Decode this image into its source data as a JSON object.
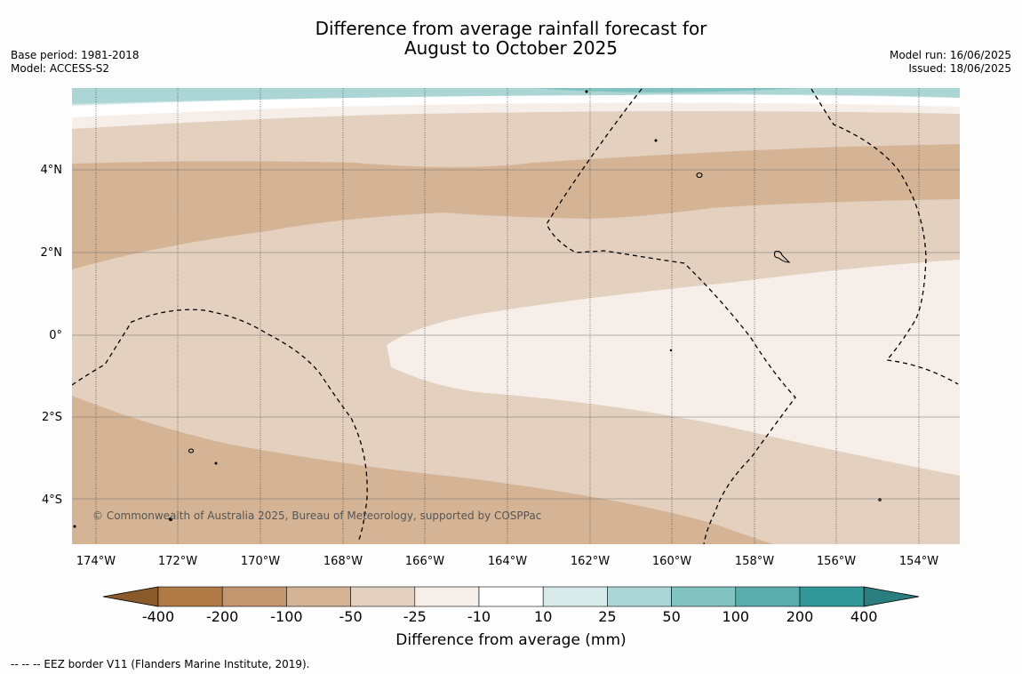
{
  "title_line1": "Difference from average rainfall forecast for",
  "title_line2": "August to October 2025",
  "base_period": "Base period: 1981-2018",
  "model": "Model: ACCESS-S2",
  "model_run": "Model run: 16/06/2025",
  "issued": "Issued: 18/06/2025",
  "copyright": "© Commonwealth of Australia 2025, Bureau of Meteorology, supported by COSPPac",
  "lat_labels": [
    "4°N",
    "2°N",
    "0°",
    "2°S",
    "4°S"
  ],
  "lon_labels": [
    "174°W",
    "172°W",
    "170°W",
    "168°W",
    "166°W",
    "164°W",
    "162°W",
    "160°W",
    "158°W",
    "156°W",
    "154°W"
  ],
  "colorbar": {
    "title": "Difference from average (mm)",
    "ticks": [
      "-400",
      "-200",
      "-100",
      "-50",
      "-25",
      "-10",
      "10",
      "25",
      "50",
      "100",
      "200",
      "400"
    ],
    "colors": [
      "#8b5a2b",
      "#b07a45",
      "#c39670",
      "#d4b495",
      "#e3d0bf",
      "#f5eee9",
      "#ffffff",
      "#d6ebea",
      "#acd6d5",
      "#82c2c0",
      "#5aadac",
      "#329797",
      "#2a7e7d"
    ]
  },
  "footnote": "--  --  -- EEZ border V11 (Flanders Marine Institute, 2019)."
}
